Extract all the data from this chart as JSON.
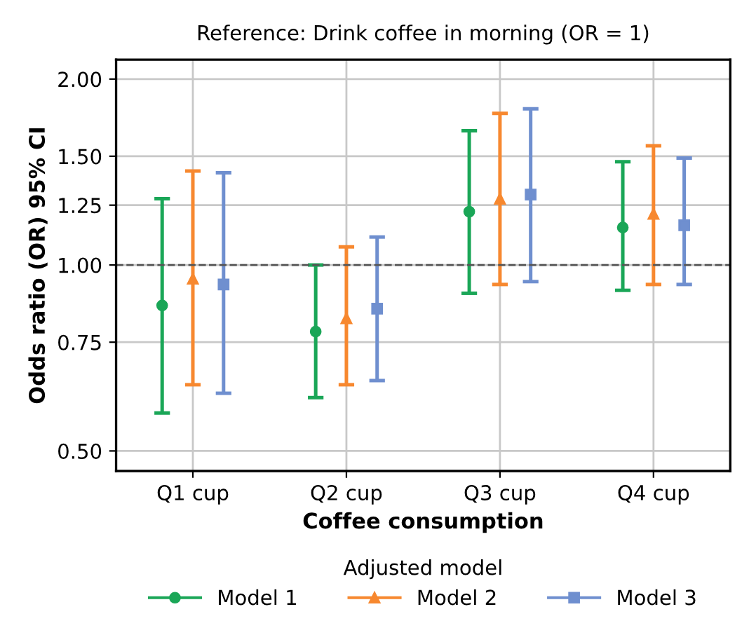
{
  "chart_data": {
    "type": "scatter",
    "title": "Reference: Drink coffee in morning (OR = 1)",
    "xlabel": "Coffee consumption",
    "ylabel": "Odds ratio (OR) 95% CI",
    "legend_title": "Adjusted model",
    "categories": [
      "Q1 cup",
      "Q2 cup",
      "Q3 cup",
      "Q4 cup"
    ],
    "series": [
      {
        "name": "Model 1",
        "color": "#1aa657",
        "marker": "circle",
        "values": [
          0.86,
          0.78,
          1.22,
          1.15
        ],
        "errors": [
          [
            0.576,
            1.28
          ],
          [
            0.61,
            1.0
          ],
          [
            0.9,
            1.65
          ],
          [
            0.91,
            1.47
          ]
        ]
      },
      {
        "name": "Model 2",
        "color": "#f7882f",
        "marker": "triangle",
        "values": [
          0.95,
          0.82,
          1.28,
          1.21
        ],
        "errors": [
          [
            0.64,
            1.42
          ],
          [
            0.64,
            1.07
          ],
          [
            0.93,
            1.76
          ],
          [
            0.93,
            1.56
          ]
        ]
      },
      {
        "name": "Model 3",
        "color": "#6f8fcf",
        "marker": "square",
        "values": [
          0.93,
          0.85,
          1.3,
          1.16
        ],
        "errors": [
          [
            0.62,
            1.41
          ],
          [
            0.65,
            1.11
          ],
          [
            0.94,
            1.79
          ],
          [
            0.93,
            1.49
          ]
        ]
      }
    ],
    "log": "y",
    "ylim": [
      0.464,
      2.15
    ],
    "yticks": [
      {
        "value": 0.5,
        "label": "0.50"
      },
      {
        "value": 0.75,
        "label": "0.75"
      },
      {
        "value": 1,
        "label": "1.00"
      },
      {
        "value": 1.25,
        "label": "1.25"
      },
      {
        "value": 1.5,
        "label": "1.50"
      },
      {
        "value": 2,
        "label": "2.00"
      }
    ],
    "ref_lines": [
      {
        "axis": "y",
        "value": 1,
        "color": "#555555",
        "line_style": "dashed"
      }
    ],
    "grid": true,
    "legend": "bottom"
  }
}
